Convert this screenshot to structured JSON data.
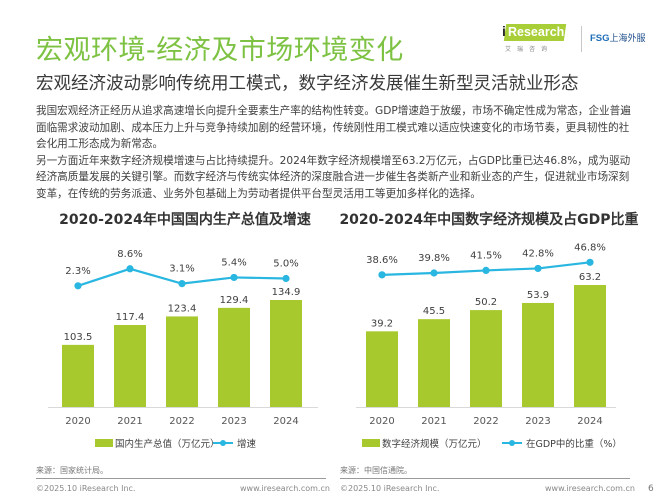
{
  "header": {
    "title": "宏观环境-经济及市场环境变化",
    "subtitle": "宏观经济波动影响传统用工模式，数字经济发展催生新型灵活就业形态",
    "logo_iresearch_i": "i",
    "logo_iresearch": "Research",
    "logo_iresearch_cn": "艾瑞咨询",
    "logo_fsg": "FSG",
    "logo_fsg_cn": "上海外服"
  },
  "body": {
    "paragraphs": [
      "我国宏观经济正经历从追求高速增长向提升全要素生产率的结构性转变。GDP增速趋于放缓，市场不确定性成为常态，企业普遍面临需求波动加剧、成本压力上升与竞争持续加剧的经营环境，传统刚性用工模式难以适应快速变化的市场节奏，更具韧性的社会化用工形态成为新常态。",
      "另一方面近年来数字经济规模增速与占比持续提升。2024年数字经济规模增至63.2万亿元，占GDP比重已达46.8%，成为驱动经济高质量发展的关键引擎。而数字经济与传统实体经济的深度融合进一步催生各类新产业和新业态的产生，促进就业市场深刻变革，在传统的劳务派遣、业务外包基础上为劳动者提供平台型灵活用工等更加多样化的选择。"
    ]
  },
  "colors": {
    "title_green": "#7dc242",
    "bar_green": "#a8c92e",
    "line_blue": "#29b6e0"
  },
  "chart_data": [
    {
      "type": "bar",
      "title": "2020-2024年中国国内生产总值及增速",
      "categories": [
        "2020",
        "2021",
        "2022",
        "2023",
        "2024"
      ],
      "series": [
        {
          "name": "国内生产总值（万亿元）",
          "type": "bar",
          "values": [
            103.5,
            117.4,
            123.4,
            129.4,
            134.9
          ],
          "labels": [
            "103.5",
            "117.4",
            "123.4",
            "129.4",
            "134.9"
          ]
        },
        {
          "name": "增速",
          "type": "line",
          "values": [
            2.3,
            8.6,
            3.1,
            5.4,
            5.0
          ],
          "labels": [
            "2.3%",
            "8.6%",
            "3.1%",
            "5.4%",
            "5.0%"
          ]
        }
      ],
      "xlabel": "",
      "ylabel": "",
      "legend": "bottom",
      "grid": false
    },
    {
      "type": "bar",
      "title": "2020-2024年中国数字经济规模及占GDP比重",
      "categories": [
        "2020",
        "2021",
        "2022",
        "2023",
        "2024"
      ],
      "series": [
        {
          "name": "数字经济规模（万亿元）",
          "type": "bar",
          "values": [
            39.2,
            45.5,
            50.2,
            53.9,
            63.2
          ],
          "labels": [
            "39.2",
            "45.5",
            "50.2",
            "53.9",
            "63.2"
          ]
        },
        {
          "name": "在GDP中的比重（%）",
          "type": "line",
          "values": [
            38.6,
            39.8,
            41.5,
            42.8,
            46.8
          ],
          "labels": [
            "38.6%",
            "39.8%",
            "41.5%",
            "42.8%",
            "46.8%"
          ]
        }
      ],
      "xlabel": "",
      "ylabel": "",
      "legend": "bottom",
      "grid": false
    }
  ],
  "footer": {
    "left_source": "来源：国家统计局。",
    "right_source": "来源：中国信通院。",
    "left_copyright": "©2025.10 iResearch Inc.",
    "left_url": "www.iresearch.com.cn",
    "right_copyright": "©2025.10 iResearch Inc.",
    "right_url": "www.iresearch.com.cn",
    "page_number": "6"
  }
}
